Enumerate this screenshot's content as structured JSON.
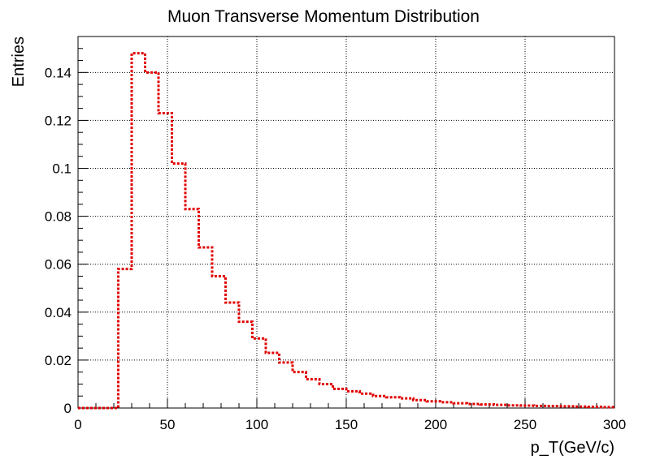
{
  "chart_data": {
    "type": "histogram",
    "title": "Muon Transverse Momentum Distribution",
    "xlabel": "p_T(GeV/c)",
    "ylabel": "Entries",
    "xlim": [
      0,
      300
    ],
    "ylim": [
      0,
      0.155
    ],
    "grid": true,
    "x_ticks": [
      0,
      50,
      100,
      150,
      200,
      250,
      300
    ],
    "x_tick_labels": [
      "0",
      "50",
      "100",
      "150",
      "200",
      "250",
      "300"
    ],
    "y_ticks": [
      0,
      0.02,
      0.04,
      0.06,
      0.08,
      0.1,
      0.12,
      0.14
    ],
    "y_tick_labels": [
      "0",
      "0.02",
      "0.04",
      "0.06",
      "0.08",
      "0.1",
      "0.12",
      "0.14"
    ],
    "bin_width": 7.5,
    "bin_edges_start": 0,
    "values": [
      0,
      0,
      0,
      0.058,
      0.148,
      0.14,
      0.123,
      0.102,
      0.083,
      0.067,
      0.055,
      0.044,
      0.036,
      0.029,
      0.023,
      0.019,
      0.015,
      0.012,
      0.01,
      0.008,
      0.007,
      0.006,
      0.005,
      0.0045,
      0.004,
      0.0033,
      0.0028,
      0.0024,
      0.002,
      0.0017,
      0.0015,
      0.0013,
      0.0011,
      0.001,
      0.0009,
      0.0008,
      0.0007,
      0.0006,
      0.0005,
      0.0004
    ],
    "line_color": "#e00000",
    "line_style": "dotted"
  }
}
